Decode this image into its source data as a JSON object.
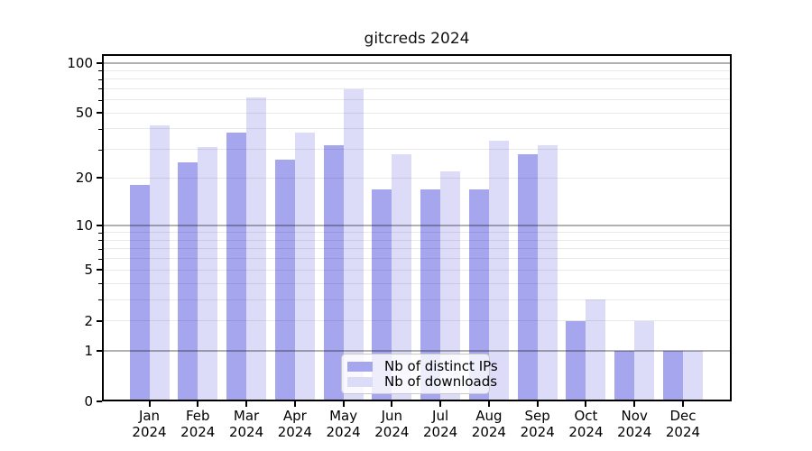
{
  "chart_data": {
    "type": "bar",
    "title": "gitcreds 2024",
    "categories": [
      {
        "month": "Jan",
        "year": "2024"
      },
      {
        "month": "Feb",
        "year": "2024"
      },
      {
        "month": "Mar",
        "year": "2024"
      },
      {
        "month": "Apr",
        "year": "2024"
      },
      {
        "month": "May",
        "year": "2024"
      },
      {
        "month": "Jun",
        "year": "2024"
      },
      {
        "month": "Jul",
        "year": "2024"
      },
      {
        "month": "Aug",
        "year": "2024"
      },
      {
        "month": "Sep",
        "year": "2024"
      },
      {
        "month": "Oct",
        "year": "2024"
      },
      {
        "month": "Nov",
        "year": "2024"
      },
      {
        "month": "Dec",
        "year": "2024"
      }
    ],
    "series": [
      {
        "name": "Nb of distinct IPs",
        "color": "#a6a6ee",
        "values": [
          18,
          25,
          38,
          26,
          32,
          17,
          17,
          17,
          28,
          2,
          1,
          1
        ]
      },
      {
        "name": "Nb of downloads",
        "color": "#dcdcf8",
        "values": [
          42,
          31,
          62,
          38,
          69,
          28,
          22,
          34,
          32,
          3,
          2,
          1
        ]
      }
    ],
    "yscale": "log1p",
    "yticks": [
      0,
      1,
      2,
      5,
      10,
      20,
      50,
      100
    ],
    "yticks_decade": [
      1,
      10,
      100
    ],
    "yticks_minor": [
      3,
      4,
      6,
      7,
      8,
      9,
      30,
      40,
      60,
      70,
      80,
      90
    ],
    "ylim": [
      0,
      112.6
    ],
    "ylim_top": 112.6,
    "grid": true,
    "legend_position": "lower center",
    "colors": {
      "axis": "#000000",
      "grid_major": "rgba(0,0,0,0.30)",
      "grid_minor": "rgba(0,0,0,0.085)",
      "background": "#ffffff"
    }
  }
}
